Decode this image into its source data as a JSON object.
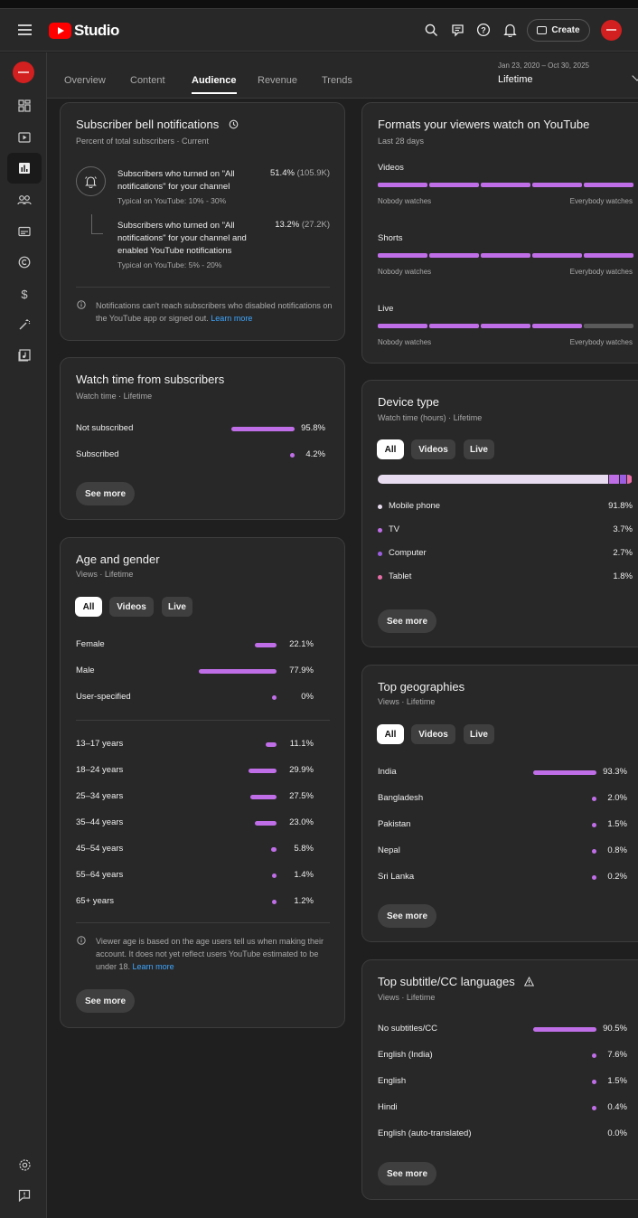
{
  "app": {
    "title": "Studio"
  },
  "header": {
    "create_label": "Create"
  },
  "tabs": [
    "Overview",
    "Content",
    "Audience",
    "Revenue",
    "Trends"
  ],
  "active_tab": "Audience",
  "date_range": {
    "range": "Jan 23, 2020 – Oct 30, 2025",
    "label": "Lifetime"
  },
  "colors": {
    "accent": "#c06ee8",
    "brand": "#ff0000",
    "tablet": "#e86ea8",
    "computer": "#9c5ee0"
  },
  "bell": {
    "title": "Subscriber bell notifications",
    "subtitle": "Percent of total subscribers · Current",
    "rows": [
      {
        "text": "Subscribers who turned on \"All notifications\" for your channel",
        "typical": "Typical on YouTube: 10% - 30%",
        "value": "51.4%",
        "count": "(105.9K)"
      },
      {
        "text": "Subscribers who turned on \"All notifications\" for your channel and enabled YouTube notifications",
        "typical": "Typical on YouTube: 5% - 20%",
        "value": "13.2%",
        "count": "(27.2K)"
      }
    ],
    "note": "Notifications can't reach subscribers who disabled notifications on the YouTube app or signed out.",
    "note_link": "Learn more"
  },
  "watch_time": {
    "title": "Watch time from subscribers",
    "subtitle": "Watch time · Lifetime",
    "rows": [
      {
        "label": "Not subscribed",
        "value": "95.8%",
        "pct": 95.8
      },
      {
        "label": "Subscribed",
        "value": "4.2%",
        "pct": 4.2
      }
    ],
    "button": "See more"
  },
  "age_gender": {
    "title": "Age and gender",
    "subtitle": "Views · Lifetime",
    "chips": [
      "All",
      "Videos",
      "Live"
    ],
    "gender": [
      {
        "label": "Female",
        "value": "22.1%",
        "pct": 22.1
      },
      {
        "label": "Male",
        "value": "77.9%",
        "pct": 77.9
      },
      {
        "label": "User-specified",
        "value": "0%",
        "pct": 0
      }
    ],
    "ages": [
      {
        "label": "13–17 years",
        "value": "11.1%",
        "pct": 11.1
      },
      {
        "label": "18–24 years",
        "value": "29.9%",
        "pct": 29.9
      },
      {
        "label": "25–34 years",
        "value": "27.5%",
        "pct": 27.5
      },
      {
        "label": "35–44 years",
        "value": "23.0%",
        "pct": 23.0
      },
      {
        "label": "45–54 years",
        "value": "5.8%",
        "pct": 5.8
      },
      {
        "label": "55–64 years",
        "value": "1.4%",
        "pct": 1.4
      },
      {
        "label": "65+ years",
        "value": "1.2%",
        "pct": 1.2
      }
    ],
    "note": "Viewer age is based on the age users tell us when making their account. It does not yet reflect users YouTube estimated to be under 18.",
    "note_link": "Learn more",
    "button": "See more"
  },
  "formats": {
    "title": "Formats your viewers watch on YouTube",
    "subtitle": "Last 28 days",
    "min_label": "Nobody watches",
    "max_label": "Everybody watches",
    "items": [
      {
        "label": "Videos",
        "level": 5
      },
      {
        "label": "Shorts",
        "level": 5
      },
      {
        "label": "Live",
        "level": 4
      }
    ],
    "segments": 5
  },
  "device": {
    "title": "Device type",
    "subtitle": "Watch time (hours) · Lifetime",
    "chips": [
      "All",
      "Videos",
      "Live"
    ],
    "items": [
      {
        "label": "Mobile phone",
        "value": "91.8%",
        "pct": 91.8,
        "color": "#e8ddf0"
      },
      {
        "label": "TV",
        "value": "3.7%",
        "pct": 3.7,
        "color": "#c06ee8"
      },
      {
        "label": "Computer",
        "value": "2.7%",
        "pct": 2.7,
        "color": "#9c5ee0"
      },
      {
        "label": "Tablet",
        "value": "1.8%",
        "pct": 1.8,
        "color": "#e86ea8"
      }
    ],
    "button": "See more"
  },
  "geo": {
    "title": "Top geographies",
    "subtitle": "Views · Lifetime",
    "chips": [
      "All",
      "Videos",
      "Live"
    ],
    "items": [
      {
        "label": "India",
        "value": "93.3%",
        "pct": 93.3
      },
      {
        "label": "Bangladesh",
        "value": "2.0%",
        "pct": 2.0
      },
      {
        "label": "Pakistan",
        "value": "1.5%",
        "pct": 1.5
      },
      {
        "label": "Nepal",
        "value": "0.8%",
        "pct": 0.8
      },
      {
        "label": "Sri Lanka",
        "value": "0.2%",
        "pct": 0.2
      }
    ],
    "button": "See more"
  },
  "subtitles": {
    "title": "Top subtitle/CC languages",
    "subtitle": "Views · Lifetime",
    "items": [
      {
        "label": "No subtitles/CC",
        "value": "90.5%",
        "pct": 90.5
      },
      {
        "label": "English (India)",
        "value": "7.6%",
        "pct": 7.6
      },
      {
        "label": "English",
        "value": "1.5%",
        "pct": 1.5
      },
      {
        "label": "Hindi",
        "value": "0.4%",
        "pct": 0.4
      },
      {
        "label": "English (auto-translated)",
        "value": "0.0%",
        "pct": 0.0
      }
    ],
    "button": "See more"
  }
}
